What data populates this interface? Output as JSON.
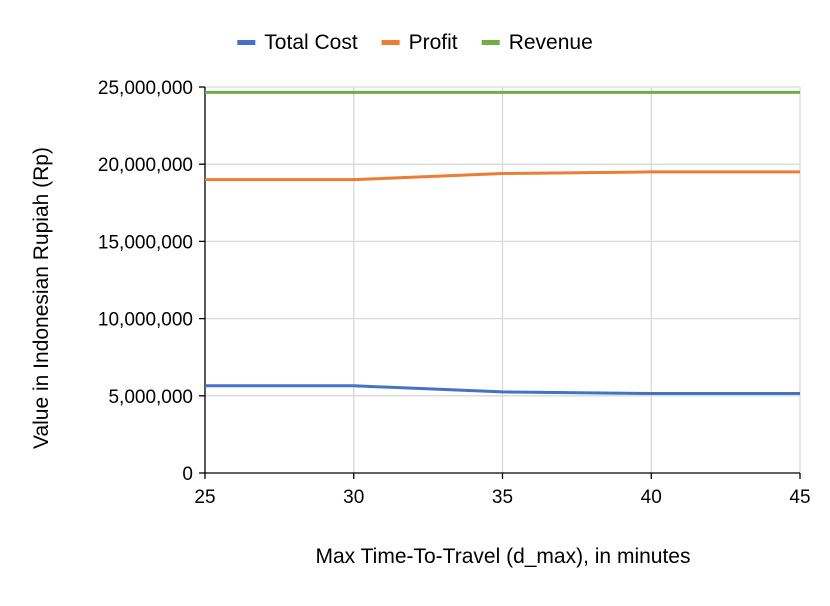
{
  "chart_data": {
    "type": "line",
    "title": "",
    "xlabel": "Max Time-To-Travel (d_max), in minutes",
    "ylabel": "Value in Indonesian Rupiah (Rp)",
    "x": [
      25,
      30,
      35,
      40,
      45
    ],
    "x_tick_labels": [
      "25",
      "30",
      "35",
      "40",
      "45"
    ],
    "xlim": [
      25,
      45
    ],
    "ylim": [
      0,
      25000000
    ],
    "y_ticks": [
      0,
      5000000,
      10000000,
      15000000,
      20000000,
      25000000
    ],
    "y_tick_labels": [
      "0",
      "5,000,000",
      "10,000,000",
      "15,000,000",
      "20,000,000",
      "25,000,000"
    ],
    "grid": true,
    "legend_position": "top",
    "series": [
      {
        "name": "Total Cost",
        "color": "#4472C4",
        "values": [
          5650000,
          5650000,
          5250000,
          5150000,
          5150000
        ]
      },
      {
        "name": "Profit",
        "color": "#ED7D31",
        "values": [
          19000000,
          19000000,
          19400000,
          19500000,
          19500000
        ]
      },
      {
        "name": "Revenue",
        "color": "#70AD47",
        "values": [
          24650000,
          24650000,
          24650000,
          24650000,
          24650000
        ]
      }
    ]
  }
}
